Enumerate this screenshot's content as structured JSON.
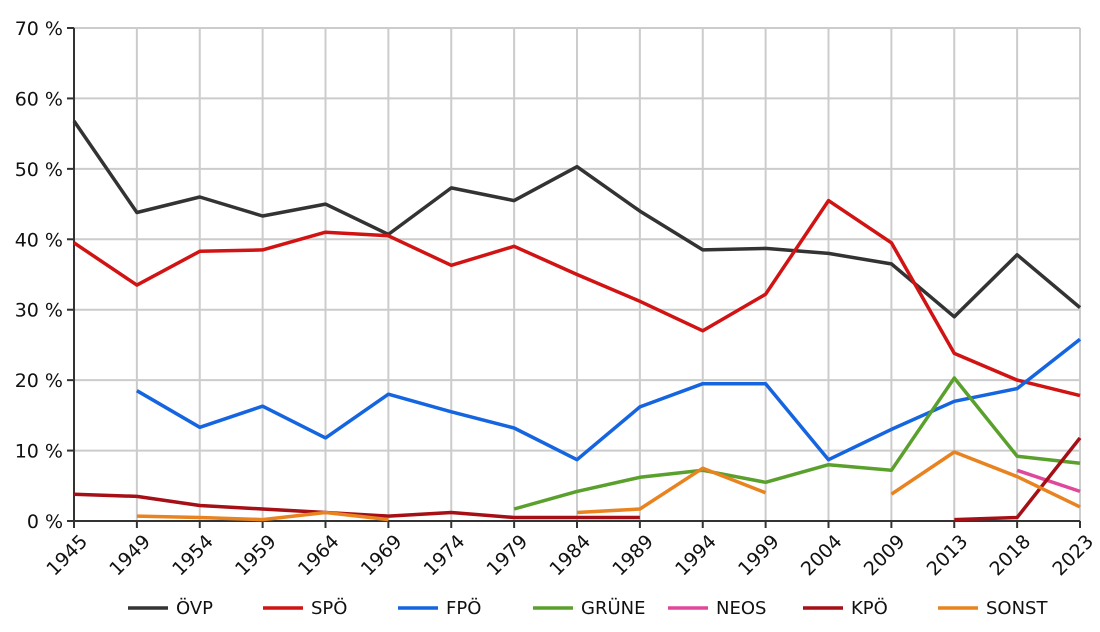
{
  "chart_data": {
    "type": "line",
    "categories": [
      "1945",
      "1949",
      "1954",
      "1959",
      "1964",
      "1969",
      "1974",
      "1979",
      "1984",
      "1989",
      "1994",
      "1999",
      "2004",
      "2009",
      "2013",
      "2018",
      "2023"
    ],
    "y_tick_labels": [
      "0 %",
      "10 %",
      "20 %",
      "30 %",
      "40 %",
      "50 %",
      "60 %",
      "70 %"
    ],
    "ylim": [
      0,
      70
    ],
    "grid": true,
    "legend_position": "bottom",
    "series": [
      {
        "name": "ÖVP",
        "color": "#333333",
        "values": [
          56.8,
          43.8,
          46.0,
          43.3,
          45.0,
          40.7,
          47.3,
          45.5,
          50.3,
          44.0,
          38.5,
          38.7,
          38.0,
          36.5,
          29.0,
          37.8,
          30.3
        ]
      },
      {
        "name": "SPÖ",
        "color": "#d11313",
        "values": [
          39.5,
          33.5,
          38.3,
          38.5,
          41.0,
          40.5,
          36.3,
          39.0,
          35.0,
          31.2,
          27.0,
          32.2,
          45.5,
          39.5,
          23.8,
          20.0,
          17.8
        ]
      },
      {
        "name": "FPÖ",
        "color": "#1565e0",
        "values": [
          null,
          18.5,
          13.3,
          16.3,
          11.8,
          18.0,
          15.5,
          13.2,
          8.7,
          16.2,
          19.5,
          19.5,
          8.7,
          13.0,
          17.0,
          18.8,
          25.8
        ]
      },
      {
        "name": "GRÜNE",
        "color": "#5aa02c",
        "values": [
          null,
          null,
          null,
          null,
          null,
          null,
          null,
          1.7,
          4.2,
          6.2,
          7.2,
          5.5,
          8.0,
          7.2,
          20.3,
          9.2,
          8.2
        ]
      },
      {
        "name": "NEOS",
        "color": "#e0489b",
        "values": [
          null,
          null,
          null,
          null,
          null,
          null,
          null,
          null,
          null,
          null,
          null,
          null,
          null,
          null,
          null,
          7.2,
          4.2
        ]
      },
      {
        "name": "KPÖ",
        "color": "#a50f15",
        "values": [
          3.8,
          3.5,
          2.2,
          1.7,
          1.2,
          0.7,
          1.2,
          0.5,
          0.5,
          0.5,
          null,
          null,
          null,
          null,
          0.2,
          0.5,
          11.8
        ]
      },
      {
        "name": "SONST",
        "color": "#e8831f",
        "values": [
          null,
          0.7,
          0.5,
          0.2,
          1.2,
          0.2,
          null,
          null,
          1.2,
          1.7,
          7.5,
          4.0,
          null,
          3.8,
          9.8,
          6.3,
          2.0
        ]
      }
    ]
  }
}
